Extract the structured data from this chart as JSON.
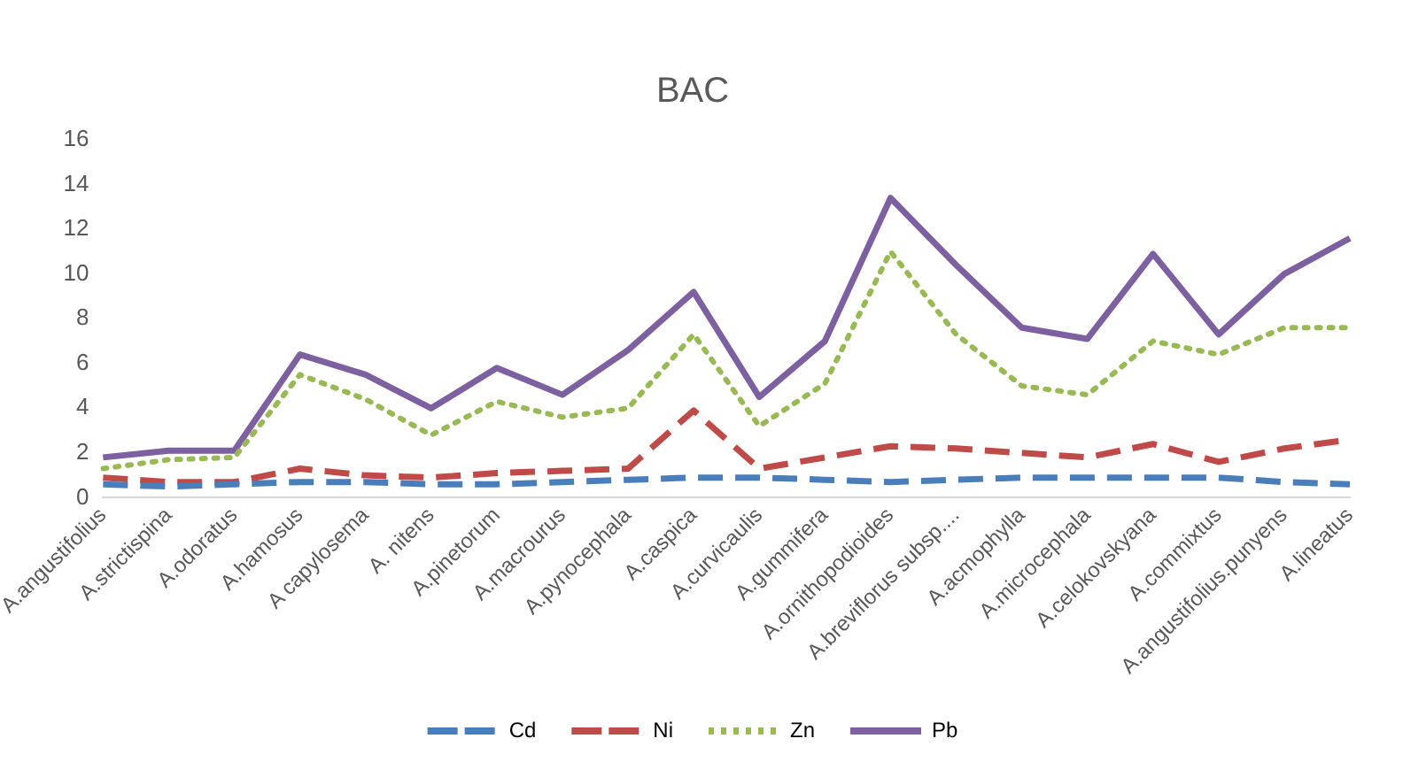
{
  "chart_data": {
    "type": "line",
    "title": "BAC",
    "categories": [
      "A.angustifolius",
      "A.strictispina",
      "A.odoratus",
      "A.hamosus",
      "A capylosema",
      "A. nitens",
      "A.pinetorum",
      "A.macrourus",
      "A.pynocephala",
      "A.caspica",
      "A.curvicaulis",
      "A.gummifera",
      "A.ornithopodioides",
      "A.breviflorus subsp....",
      "A.acmophylla",
      "A.microcephala",
      "A.celokovskyana",
      "A.commixtus",
      "A.angustifolius.punyens",
      "A.lineatus"
    ],
    "series": [
      {
        "name": "Cd",
        "color": "#4a7ebb",
        "line_style": "dashed",
        "values": [
          0.6,
          0.5,
          0.6,
          0.7,
          0.7,
          0.6,
          0.6,
          0.7,
          0.8,
          0.9,
          0.9,
          0.8,
          0.7,
          0.8,
          0.9,
          0.9,
          0.9,
          0.9,
          0.7,
          0.6
        ]
      },
      {
        "name": "Ni",
        "color": "#be4b48",
        "line_style": "dashed",
        "values": [
          0.9,
          0.7,
          0.7,
          1.3,
          1.0,
          0.9,
          1.1,
          1.2,
          1.3,
          3.9,
          1.3,
          1.8,
          2.3,
          2.2,
          2.0,
          1.8,
          2.4,
          1.6,
          2.2,
          2.6
        ]
      },
      {
        "name": "Zn",
        "color": "#98b954",
        "line_style": "dotted",
        "values": [
          1.3,
          1.7,
          1.8,
          5.5,
          4.4,
          2.8,
          4.3,
          3.6,
          4.0,
          7.3,
          3.2,
          5.1,
          11.0,
          7.3,
          5.0,
          4.6,
          7.0,
          6.4,
          7.6,
          7.6
        ]
      },
      {
        "name": "Pb",
        "color": "#7d60a0",
        "line_style": "solid",
        "values": [
          1.8,
          2.1,
          2.1,
          6.4,
          5.5,
          4.0,
          5.8,
          4.6,
          6.6,
          9.2,
          4.5,
          7.0,
          13.4,
          10.4,
          7.6,
          7.1,
          10.9,
          7.3,
          10.0,
          11.6
        ]
      }
    ],
    "ylim": [
      0,
      16
    ],
    "yticks": [
      0,
      2,
      4,
      6,
      8,
      10,
      12,
      14,
      16
    ],
    "grid": false,
    "legend": "bottom",
    "marker": "none"
  }
}
